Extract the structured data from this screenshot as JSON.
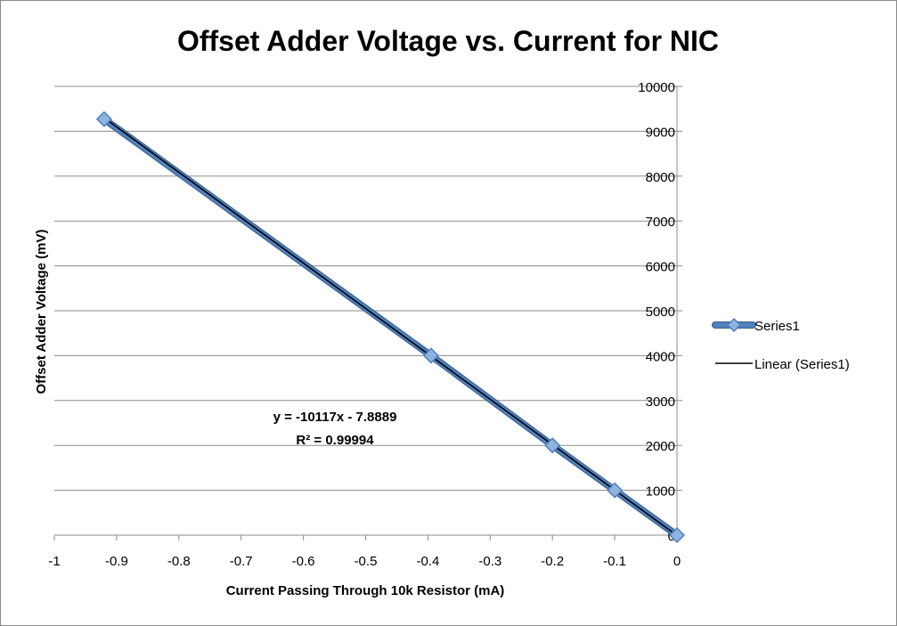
{
  "chart_data": {
    "type": "scatter",
    "title": "Offset Adder Voltage vs. Current for NIC",
    "xlabel": "Current Passing Through 10k Resistor (mA)",
    "ylabel": "Offset Adder Voltage (mV)",
    "xlim": [
      -1,
      0
    ],
    "ylim": [
      0,
      10000
    ],
    "x_ticks": [
      -1,
      -0.9,
      -0.8,
      -0.7,
      -0.6,
      -0.5,
      -0.4,
      -0.3,
      -0.2,
      -0.1,
      0
    ],
    "x_tick_labels": [
      "-1",
      "-0.9",
      "-0.8",
      "-0.7",
      "-0.6",
      "-0.5",
      "-0.4",
      "-0.3",
      "-0.2",
      "-0.1",
      "0"
    ],
    "y_ticks": [
      0,
      1000,
      2000,
      3000,
      4000,
      5000,
      6000,
      7000,
      8000,
      9000,
      10000
    ],
    "y_tick_labels": [
      "0",
      "1000",
      "2000",
      "3000",
      "4000",
      "5000",
      "6000",
      "7000",
      "8000",
      "9000",
      "10000"
    ],
    "y_axis_side": "right",
    "grid": "horizontal",
    "series": [
      {
        "name": "Series1",
        "style": "line-with-diamond-markers",
        "color": "#4f81bd",
        "x": [
          0,
          -0.1,
          -0.2,
          -0.395,
          -0.92
        ],
        "y": [
          0,
          1000,
          2000,
          4000,
          9270
        ]
      }
    ],
    "trendline": {
      "name": "Linear (Series1)",
      "color": "#000000",
      "slope": -10117,
      "intercept": -7.8889,
      "x_range": [
        -0.92,
        0
      ]
    },
    "annotation": {
      "equation": "y = -10117x - 7.8889",
      "r_squared": "R² = 0.99994"
    },
    "legend_placement": "right"
  }
}
